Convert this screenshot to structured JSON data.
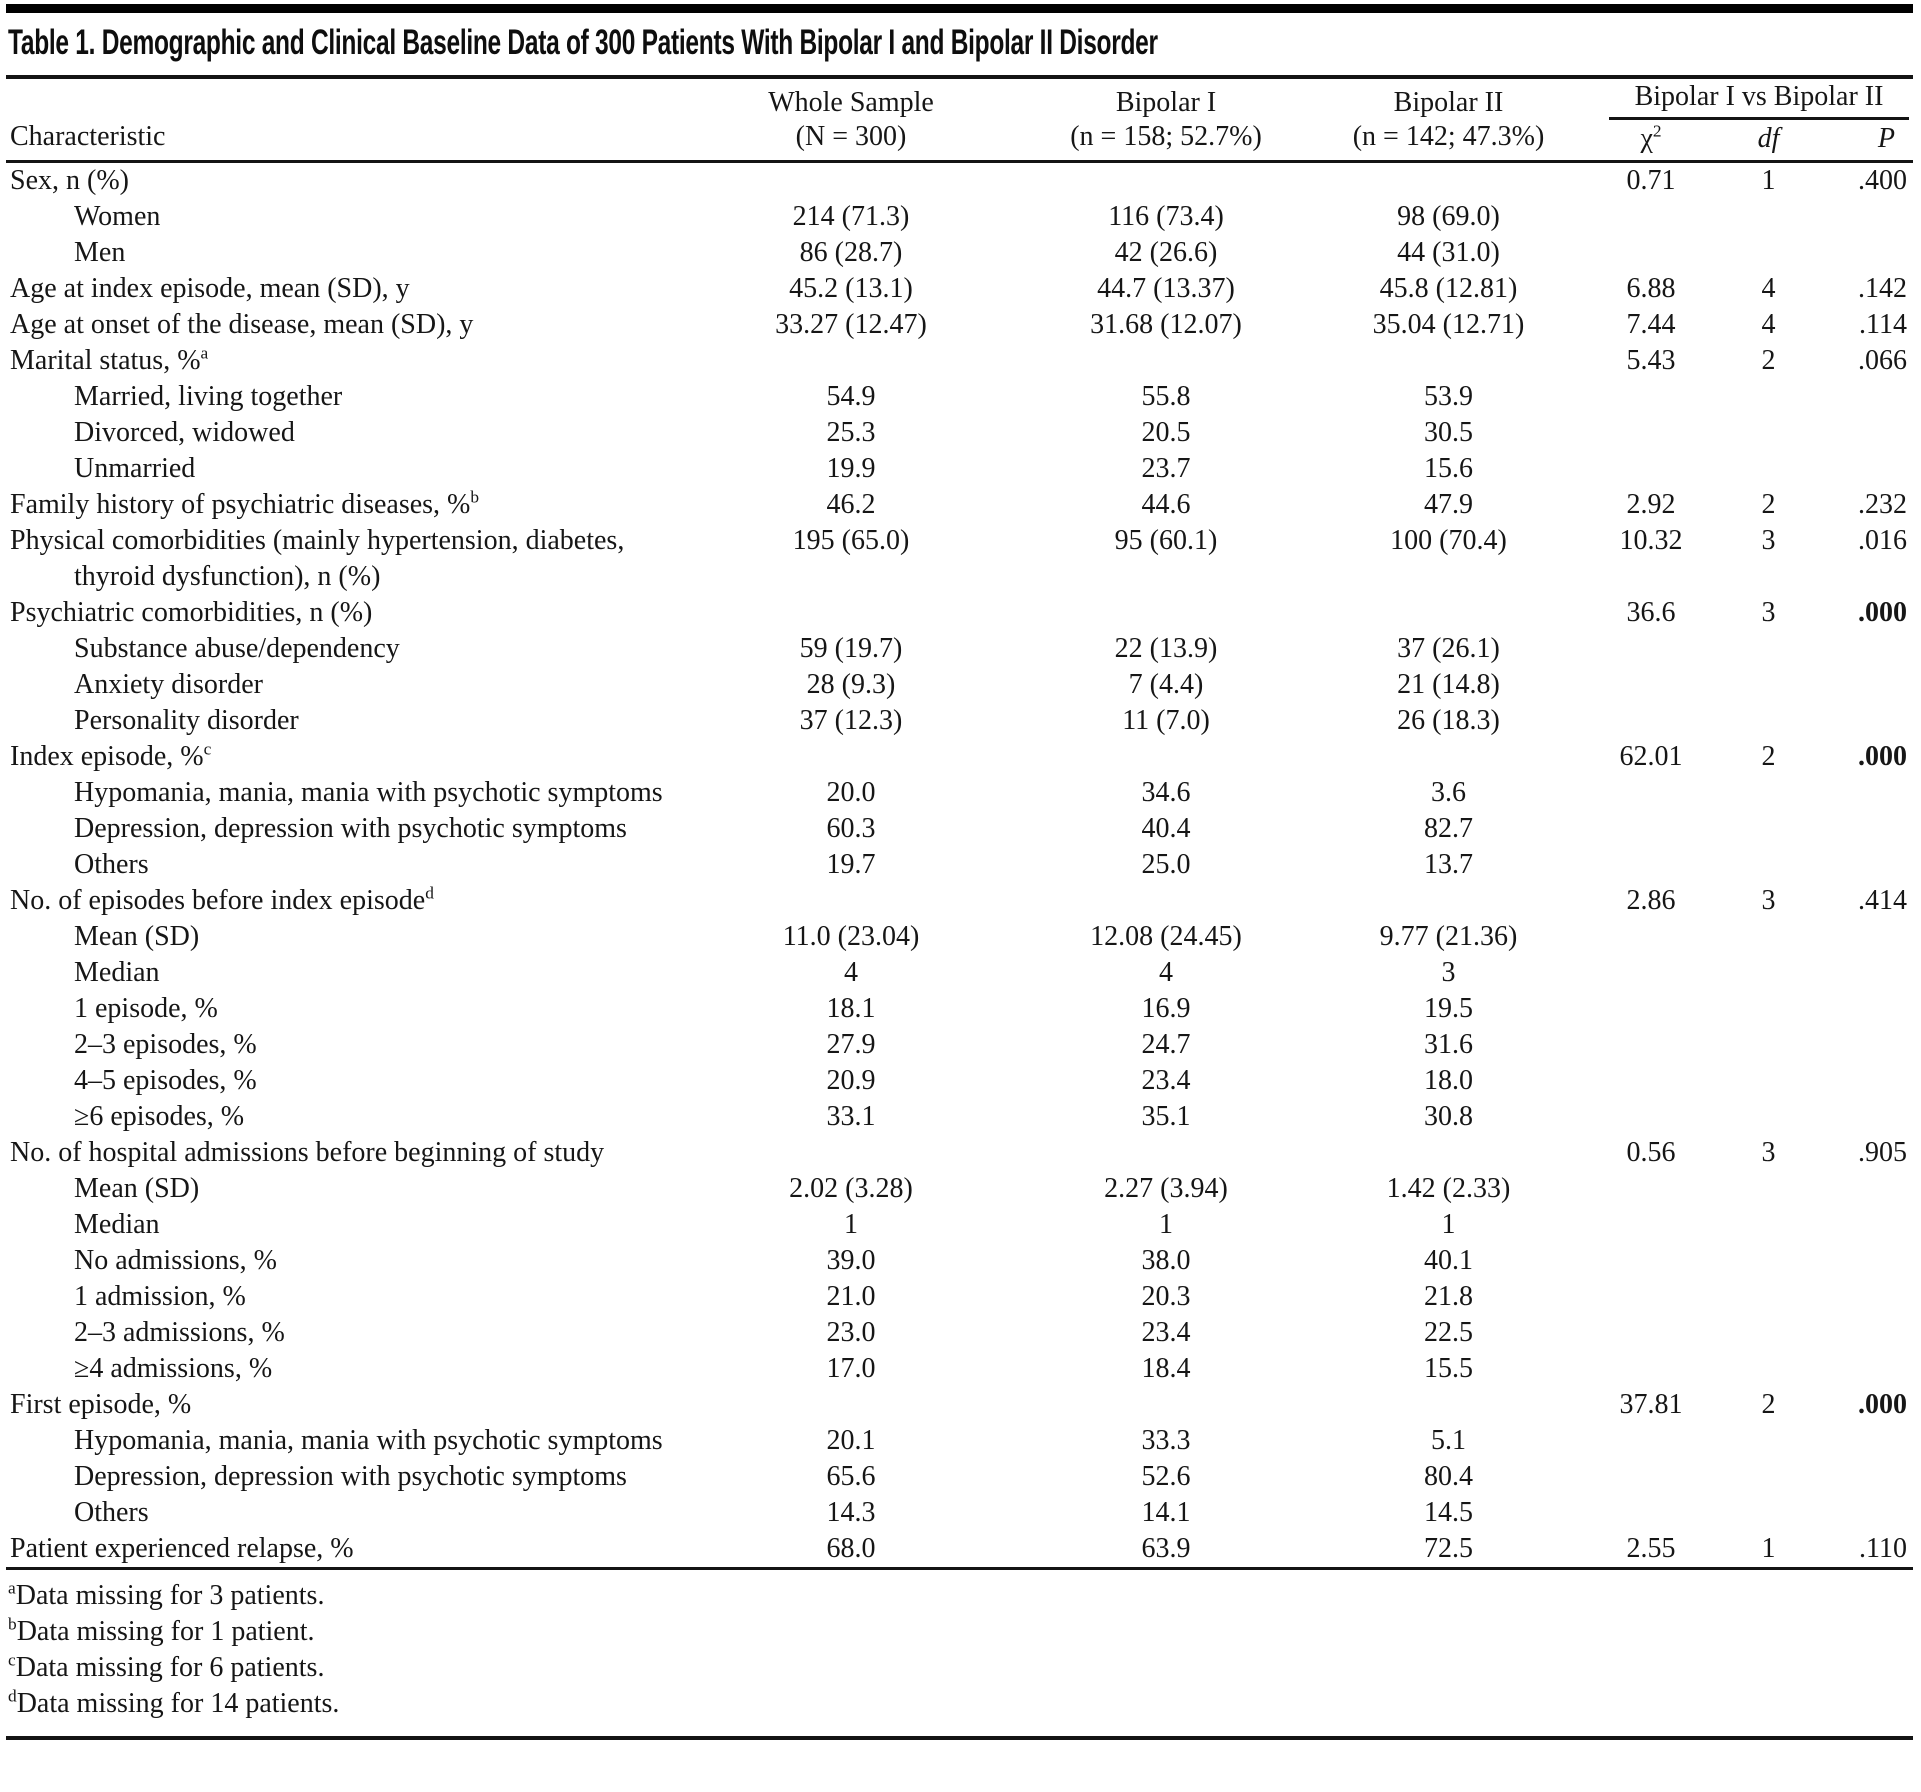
{
  "colors": {
    "top_bar": "#000000",
    "rule": "#141414",
    "text": "#161616",
    "background": "#ffffff"
  },
  "table": {
    "title": "Table 1. Demographic and Clinical Baseline Data of 300 Patients With Bipolar I and Bipolar II Disorder",
    "header": {
      "characteristic": "Characteristic",
      "whole_sample": [
        "Whole Sample",
        "(N = 300)"
      ],
      "bipolar_1": [
        "Bipolar I",
        "(n = 158; 52.7%)"
      ],
      "bipolar_2": [
        "Bipolar II",
        "(n = 142; 47.3%)"
      ],
      "comparison_spanner": "Bipolar I vs Bipolar II",
      "chi_base": "χ",
      "chi_exp": "2",
      "df": "df",
      "p": "P"
    },
    "rows": [
      {
        "label": "Sex, n (%)",
        "chi": "0.71",
        "df": "1",
        "p": ".400"
      },
      {
        "label": "Women",
        "indent": 1,
        "whole": "214 (71.3)",
        "bp1": "116 (73.4)",
        "bp2": "98 (69.0)"
      },
      {
        "label": "Men",
        "indent": 1,
        "whole": "86 (28.7)",
        "bp1": "42 (26.6)",
        "bp2": "44 (31.0)"
      },
      {
        "label": "Age at index episode, mean (SD), y",
        "whole": "45.2 (13.1)",
        "bp1": "44.7 (13.37)",
        "bp2": "45.8 (12.81)",
        "chi": "6.88",
        "df": "4",
        "p": ".142"
      },
      {
        "label": "Age at onset of the disease, mean (SD), y",
        "whole": "33.27 (12.47)",
        "bp1": "31.68 (12.07)",
        "bp2": "35.04 (12.71)",
        "chi": "7.44",
        "df": "4",
        "p": ".114"
      },
      {
        "label": "Marital status, %",
        "sup": "a",
        "chi": "5.43",
        "df": "2",
        "p": ".066"
      },
      {
        "label": "Married, living together",
        "indent": 1,
        "whole": "54.9",
        "bp1": "55.8",
        "bp2": "53.9"
      },
      {
        "label": "Divorced, widowed",
        "indent": 1,
        "whole": "25.3",
        "bp1": "20.5",
        "bp2": "30.5"
      },
      {
        "label": "Unmarried",
        "indent": 1,
        "whole": "19.9",
        "bp1": "23.7",
        "bp2": "15.6"
      },
      {
        "label": "Family history of psychiatric diseases, %",
        "sup": "b",
        "whole": "46.2",
        "bp1": "44.6",
        "bp2": "47.9",
        "chi": "2.92",
        "df": "2",
        "p": ".232"
      },
      {
        "label": "Physical comorbidities (mainly hypertension, diabetes,",
        "label2": "thyroid dysfunction), n (%)",
        "whole": "195 (65.0)",
        "bp1": "95 (60.1)",
        "bp2": "100 (70.4)",
        "chi": "10.32",
        "df": "3",
        "p": ".016"
      },
      {
        "label": "Psychiatric comorbidities, n (%)",
        "chi": "36.6",
        "df": "3",
        "p": ".000",
        "pBold": 1
      },
      {
        "label": "Substance abuse/dependency",
        "indent": 1,
        "whole": "59 (19.7)",
        "bp1": "22 (13.9)",
        "bp2": "37 (26.1)"
      },
      {
        "label": "Anxiety disorder",
        "indent": 1,
        "whole": "28 (9.3)",
        "bp1": "7 (4.4)",
        "bp2": "21 (14.8)"
      },
      {
        "label": "Personality disorder",
        "indent": 1,
        "whole": "37 (12.3)",
        "bp1": "11 (7.0)",
        "bp2": "26 (18.3)"
      },
      {
        "label": "Index episode, %",
        "sup": "c",
        "chi": "62.01",
        "df": "2",
        "p": ".000",
        "pBold": 1
      },
      {
        "label": "Hypomania, mania, mania with psychotic symptoms",
        "indent": 1,
        "whole": "20.0",
        "bp1": "34.6",
        "bp2": "3.6"
      },
      {
        "label": "Depression, depression with psychotic symptoms",
        "indent": 1,
        "whole": "60.3",
        "bp1": "40.4",
        "bp2": "82.7"
      },
      {
        "label": "Others",
        "indent": 1,
        "whole": "19.7",
        "bp1": "25.0",
        "bp2": "13.7"
      },
      {
        "label": "No. of episodes before index episode",
        "sup": "d",
        "chi": "2.86",
        "df": "3",
        "p": ".414"
      },
      {
        "label": "Mean (SD)",
        "indent": 1,
        "whole": "11.0 (23.04)",
        "bp1": "12.08 (24.45)",
        "bp2": "9.77 (21.36)"
      },
      {
        "label": "Median",
        "indent": 1,
        "whole": "4",
        "bp1": "4",
        "bp2": "3"
      },
      {
        "label": "1 episode, %",
        "indent": 1,
        "whole": "18.1",
        "bp1": "16.9",
        "bp2": "19.5"
      },
      {
        "label": "2–3 episodes, %",
        "indent": 1,
        "whole": "27.9",
        "bp1": "24.7",
        "bp2": "31.6"
      },
      {
        "label": "4–5 episodes, %",
        "indent": 1,
        "whole": "20.9",
        "bp1": "23.4",
        "bp2": "18.0"
      },
      {
        "label": "≥6 episodes, %",
        "indent": 1,
        "whole": "33.1",
        "bp1": "35.1",
        "bp2": "30.8"
      },
      {
        "label": "No. of hospital admissions before beginning of study",
        "chi": "0.56",
        "df": "3",
        "p": ".905"
      },
      {
        "label": "Mean (SD)",
        "indent": 1,
        "whole": "2.02 (3.28)",
        "bp1": "2.27 (3.94)",
        "bp2": "1.42 (2.33)"
      },
      {
        "label": "Median",
        "indent": 1,
        "whole": "1",
        "bp1": "1",
        "bp2": "1"
      },
      {
        "label": "No admissions, %",
        "indent": 1,
        "whole": "39.0",
        "bp1": "38.0",
        "bp2": "40.1"
      },
      {
        "label": "1 admission, %",
        "indent": 1,
        "whole": "21.0",
        "bp1": "20.3",
        "bp2": "21.8"
      },
      {
        "label": "2–3 admissions, %",
        "indent": 1,
        "whole": "23.0",
        "bp1": "23.4",
        "bp2": "22.5"
      },
      {
        "label": "≥4 admissions, %",
        "indent": 1,
        "whole": "17.0",
        "bp1": "18.4",
        "bp2": "15.5"
      },
      {
        "label": "First episode, %",
        "chi": "37.81",
        "df": "2",
        "p": ".000",
        "pBold": 1
      },
      {
        "label": "Hypomania, mania, mania with psychotic symptoms",
        "indent": 1,
        "whole": "20.1",
        "bp1": "33.3",
        "bp2": "5.1"
      },
      {
        "label": "Depression, depression with psychotic symptoms",
        "indent": 1,
        "whole": "65.6",
        "bp1": "52.6",
        "bp2": "80.4"
      },
      {
        "label": "Others",
        "indent": 1,
        "whole": "14.3",
        "bp1": "14.1",
        "bp2": "14.5"
      },
      {
        "label": "Patient experienced relapse, %",
        "whole": "68.0",
        "bp1": "63.9",
        "bp2": "72.5",
        "chi": "2.55",
        "df": "1",
        "p": ".110"
      }
    ],
    "footnotes": [
      {
        "marker": "a",
        "text": "Data missing for 3 patients."
      },
      {
        "marker": "b",
        "text": "Data missing for 1 patient."
      },
      {
        "marker": "c",
        "text": "Data missing for 6 patients."
      },
      {
        "marker": "d",
        "text": "Data missing for 14 patients."
      }
    ]
  }
}
